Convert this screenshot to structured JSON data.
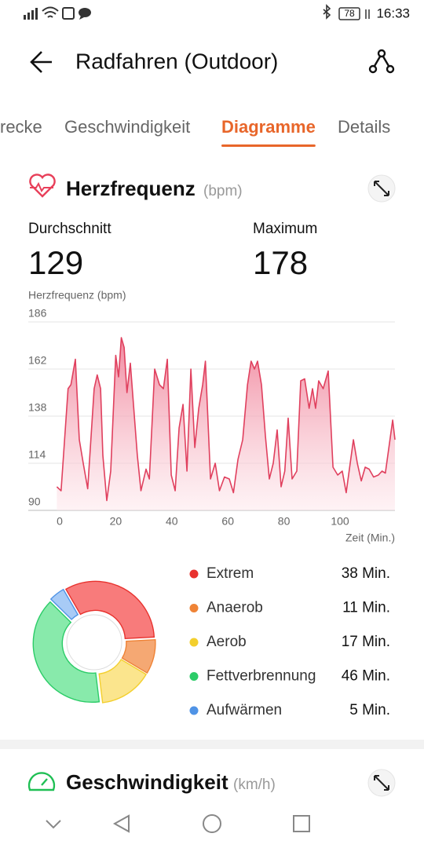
{
  "status_bar": {
    "battery": 78,
    "time": "16:33"
  },
  "header": {
    "title": "Radfahren (Outdoor)"
  },
  "tabs": [
    {
      "label": "recke",
      "active": false
    },
    {
      "label": "Geschwindigkeit",
      "active": false
    },
    {
      "label": "Diagramme",
      "active": true
    },
    {
      "label": "Details",
      "active": false
    }
  ],
  "heart_rate": {
    "title": "Herzfrequenz",
    "unit": "(bpm)",
    "stats": [
      {
        "label": "Durchschnitt",
        "value": 129
      },
      {
        "label": "Maximum",
        "value": 178
      }
    ]
  },
  "speed": {
    "title": "Geschwindigkeit",
    "unit": "(km/h)"
  },
  "chart_data": [
    {
      "type": "line",
      "ylabel": "Herzfrequenz (bpm)",
      "xlabel": "Zeit (Min.)",
      "color": "#e0405e",
      "grid": true,
      "x": [
        -1,
        0.5,
        3,
        4,
        5.6,
        7,
        8.4,
        10,
        12.3,
        13.4,
        14.6,
        15.4,
        16.8,
        18.2,
        20,
        21,
        22,
        23,
        24,
        25.2,
        27.7,
        29,
        30.8,
        32,
        33.9,
        35.6,
        37,
        38.4,
        39.8,
        41.2,
        42.6,
        44,
        45.4,
        46.8,
        48.2,
        49.6,
        51,
        52,
        53.8,
        55.5,
        57,
        58.8,
        60.5,
        62,
        63.6,
        65.3,
        67,
        68.3,
        69.5,
        70.6,
        72,
        73.4,
        74.8,
        76.2,
        77.6,
        79,
        80.3,
        81.5,
        82.9,
        84.6,
        86,
        87.4,
        89,
        90.2,
        91.3,
        92.4,
        94,
        95.8,
        97.5,
        99.2,
        100.8,
        102.2,
        104.8,
        106.2,
        107.6,
        109,
        110.4,
        112,
        113.7,
        115,
        116.2,
        118.8,
        119.6
      ],
      "values": [
        102,
        100,
        152,
        154,
        167,
        126,
        114,
        101,
        152,
        159,
        152,
        118,
        95,
        110,
        169,
        158,
        178,
        173,
        150,
        165,
        118,
        100,
        111,
        106,
        162,
        154,
        152,
        167,
        108,
        100,
        132,
        144,
        110,
        162,
        122,
        142,
        154,
        166,
        106,
        114,
        100,
        107,
        106,
        99,
        116,
        126,
        154,
        166,
        162,
        166,
        154,
        128,
        106,
        114,
        131,
        102,
        110,
        137,
        106,
        110,
        156,
        157,
        142,
        152,
        142,
        156,
        152,
        161,
        112,
        108,
        110,
        99,
        126,
        114,
        105,
        112,
        111,
        107,
        108,
        110,
        109,
        136,
        126
      ],
      "xlim": [
        -2,
        120
      ],
      "xticks": [
        0,
        20,
        40,
        60,
        80,
        100
      ],
      "ylim": [
        90,
        186
      ],
      "yticks": [
        90,
        114,
        138,
        162,
        186
      ]
    },
    {
      "type": "pie",
      "categories": [
        "Extrem",
        "Anaerob",
        "Aerob",
        "Fettverbrennung",
        "Aufwärmen"
      ],
      "values": [
        38,
        11,
        17,
        46,
        5
      ],
      "value_labels": [
        "38 Min.",
        "11 Min.",
        "17 Min.",
        "46 Min.",
        "5 Min."
      ],
      "colors": [
        "#e8322e",
        "#ef8336",
        "#f3cf2d",
        "#2ccc68",
        "#4f93e6"
      ],
      "fill_colors": [
        "#f87b7b",
        "#f5a873",
        "#fbe58d",
        "#88eaab",
        "#a8cbf6"
      ]
    }
  ]
}
